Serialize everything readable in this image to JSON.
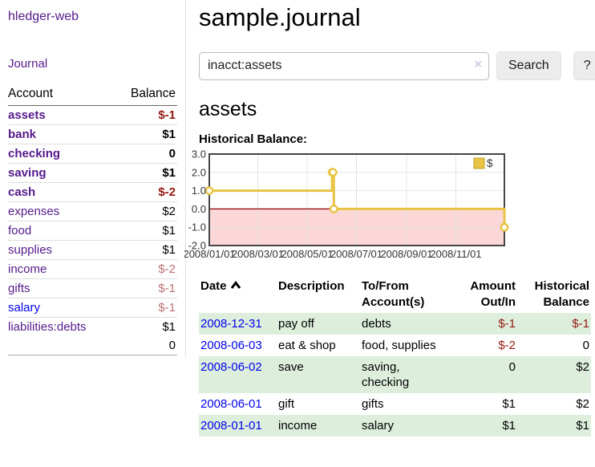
{
  "app": {
    "brand": "hledger-web",
    "title": "sample.journal"
  },
  "sidebar": {
    "nav_journal": "Journal",
    "accounts_table": {
      "header_account": "Account",
      "header_balance": "Balance",
      "rows": [
        {
          "name": "assets",
          "indent": 0,
          "bold": true,
          "balance": "$-1",
          "balance_style": "negative"
        },
        {
          "name": "bank",
          "indent": 1,
          "bold": true,
          "balance": "$1",
          "balance_style": "normal"
        },
        {
          "name": "checking",
          "indent": 2,
          "bold": true,
          "balance": "0",
          "balance_style": "normal"
        },
        {
          "name": "saving",
          "indent": 2,
          "bold": true,
          "balance": "$1",
          "balance_style": "normal"
        },
        {
          "name": "cash",
          "indent": 1,
          "bold": true,
          "balance": "$-2",
          "balance_style": "negative"
        },
        {
          "name": "expenses",
          "indent": 0,
          "bold": false,
          "balance": "$2",
          "balance_style": "normal"
        },
        {
          "name": "food",
          "indent": 1,
          "bold": false,
          "balance": "$1",
          "balance_style": "normal"
        },
        {
          "name": "supplies",
          "indent": 1,
          "bold": false,
          "balance": "$1",
          "balance_style": "normal"
        },
        {
          "name": "income",
          "indent": 0,
          "bold": false,
          "balance": "$-2",
          "balance_style": "negative-muted"
        },
        {
          "name": "gifts",
          "indent": 1,
          "bold": false,
          "balance": "$-1",
          "balance_style": "negative-muted"
        },
        {
          "name": "salary",
          "indent": 1,
          "bold": false,
          "balance": "$-1",
          "balance_style": "negative-muted",
          "unvisited": true
        },
        {
          "name": "liabilities:debts",
          "indent": 0,
          "bold": false,
          "balance": "$1",
          "balance_style": "normal"
        }
      ],
      "total": "0"
    }
  },
  "search": {
    "value": "inacct:assets",
    "clear_icon": "×",
    "button_label": "Search",
    "help_label": "?"
  },
  "main": {
    "account_heading": "assets",
    "chart_label": "Historical Balance:"
  },
  "chart_data": {
    "type": "line",
    "title": "Historical Balance",
    "step": true,
    "x_start": "2008-01-01",
    "x_end": "2008-12-31",
    "ylim": [
      -2,
      3
    ],
    "y_ticks": [
      3.0,
      2.0,
      1.0,
      0.0,
      -1.0,
      -2.0
    ],
    "x_ticks": [
      {
        "label": "2008/01/01",
        "date": "2008-01-01"
      },
      {
        "label": "2008/03/01",
        "date": "2008-03-01"
      },
      {
        "label": "2008/05/01",
        "date": "2008-05-01"
      },
      {
        "label": "2008/07/01",
        "date": "2008-07-01"
      },
      {
        "label": "2008/09/01",
        "date": "2008-09-01"
      },
      {
        "label": "2008/11/01",
        "date": "2008-11-01"
      }
    ],
    "series": [
      {
        "name": "$",
        "color": "#e9c343",
        "points": [
          [
            "2008-01-01",
            1
          ],
          [
            "2008-06-01",
            2
          ],
          [
            "2008-06-02",
            2
          ],
          [
            "2008-06-03",
            0
          ],
          [
            "2008-12-31",
            -1
          ]
        ]
      }
    ],
    "legend": {
      "position": "top-right",
      "label": "$"
    },
    "grid": true,
    "negative_region_color": "#fbd7d7",
    "zero_line_color": "#8b0000",
    "grid_line_color": "#e4e4e4",
    "border_color": "#454545"
  },
  "register": {
    "headers": {
      "date": "Date",
      "description": "Description",
      "accounts": "To/From Account(s)",
      "amount": "Amount Out/In",
      "balance": "Historical Balance"
    },
    "rows": [
      {
        "date": "2008-12-31",
        "description": "pay off",
        "accounts": "debts",
        "amount": "$-1",
        "amount_negative": true,
        "balance": "$-1",
        "balance_negative": true
      },
      {
        "date": "2008-06-03",
        "description": "eat & shop",
        "accounts": "food, supplies",
        "amount": "$-2",
        "amount_negative": true,
        "balance": "0",
        "balance_negative": false
      },
      {
        "date": "2008-06-02",
        "description": "save",
        "accounts": "saving, checking",
        "amount": "0",
        "amount_negative": false,
        "balance": "$2",
        "balance_negative": false
      },
      {
        "date": "2008-06-01",
        "description": "gift",
        "accounts": "gifts",
        "amount": "$1",
        "amount_negative": false,
        "balance": "$2",
        "balance_negative": false
      },
      {
        "date": "2008-01-01",
        "description": "income",
        "accounts": "salary",
        "amount": "$1",
        "amount_negative": false,
        "balance": "$1",
        "balance_negative": false
      }
    ]
  },
  "colors": {
    "link_visited_purple": "#551a8b",
    "link_blue": "#0000ee",
    "negative_red": "#941710",
    "negative_muted": "#bb7272",
    "row_stripe_green": "#ddeedd",
    "series_gold": "#e9c343",
    "negative_region_pink": "#fbd7d7",
    "zero_line_dark_red": "#8b0000"
  }
}
